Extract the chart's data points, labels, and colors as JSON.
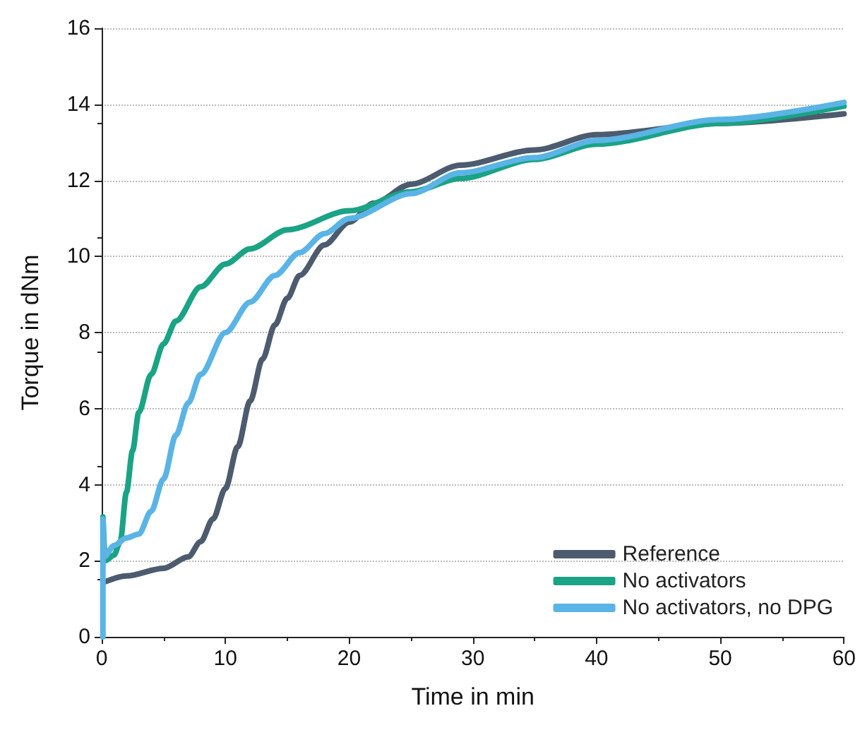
{
  "chart_data": {
    "type": "line",
    "xlabel": "Time in min",
    "ylabel": "Torque in dNm",
    "xlim": [
      0,
      60
    ],
    "xticks": [
      0,
      10,
      20,
      30,
      40,
      50,
      60
    ],
    "ylim": [
      0,
      16
    ],
    "yticks": [
      0,
      2,
      4,
      6,
      8,
      10,
      12,
      14,
      16
    ],
    "grid": "y",
    "legend": "bottom right",
    "marker": "none",
    "line_style": "solid",
    "series": [
      {
        "name": "Reference",
        "color": "#4d5b6e",
        "x": [
          0.3,
          2,
          5,
          7,
          8,
          9,
          10,
          11,
          12,
          13,
          14,
          15,
          16,
          18,
          20,
          22,
          25,
          29,
          35,
          40,
          50,
          60
        ],
        "values": [
          1.45,
          1.6,
          1.8,
          2.1,
          2.5,
          3.1,
          3.9,
          5.0,
          6.2,
          7.3,
          8.2,
          8.9,
          9.5,
          10.3,
          10.9,
          11.4,
          11.9,
          12.4,
          12.8,
          13.2,
          13.5,
          13.75
        ]
      },
      {
        "name": "No activators",
        "color": "#1aa385",
        "x": [
          0.1,
          0.3,
          1,
          1.5,
          2,
          2.5,
          3,
          4,
          5,
          6,
          8,
          10,
          12,
          15,
          20,
          25,
          29,
          35,
          40,
          50,
          60
        ],
        "values": [
          3.15,
          2.0,
          2.15,
          2.5,
          3.8,
          4.9,
          5.9,
          6.9,
          7.7,
          8.3,
          9.2,
          9.8,
          10.2,
          10.7,
          11.2,
          11.7,
          12.05,
          12.55,
          12.95,
          13.5,
          13.95
        ]
      },
      {
        "name": "No activators, no DPG",
        "color": "#5ab4e6",
        "x": [
          0.1,
          0.1,
          0.2,
          1,
          2,
          3,
          4,
          5,
          6,
          7,
          8,
          10,
          12,
          14,
          16,
          18,
          20,
          25,
          29,
          35,
          40,
          50,
          60
        ],
        "values": [
          0,
          3.1,
          2.1,
          2.4,
          2.6,
          2.7,
          3.3,
          4.15,
          5.3,
          6.15,
          6.9,
          8.0,
          8.8,
          9.5,
          10.1,
          10.6,
          11.0,
          11.65,
          12.2,
          12.6,
          13.05,
          13.6,
          14.05
        ]
      }
    ]
  }
}
